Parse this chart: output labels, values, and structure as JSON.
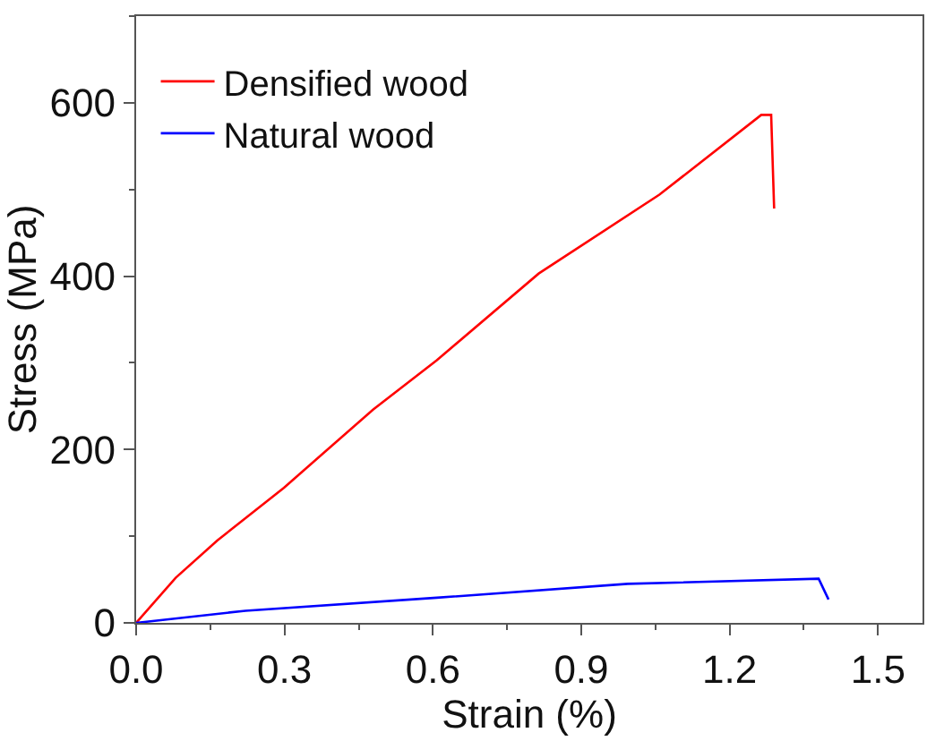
{
  "chart_data": {
    "type": "line",
    "xlabel": "Strain (%)",
    "ylabel": "Stress (MPa)",
    "xlim": [
      0,
      1.59
    ],
    "xticks": [
      {
        "value": 0,
        "label": "0.0"
      },
      0.3,
      0.6,
      0.9,
      1.2,
      1.5
    ],
    "ylim": [
      0,
      700
    ],
    "yticks": [
      0,
      200,
      400,
      600
    ],
    "legend": "top left",
    "line_style": "solid",
    "marker": "none",
    "series": [
      {
        "name": "Densified wood",
        "color": "#ff0000",
        "x": [
          0,
          0.08,
          0.164,
          0.299,
          0.479,
          0.608,
          0.814,
          1.058,
          1.264,
          1.284,
          1.29
        ],
        "values": [
          0,
          52,
          95,
          156,
          246,
          303,
          403,
          494,
          586,
          586,
          478
        ]
      },
      {
        "name": "Natural wood",
        "color": "#0000ff",
        "x": [
          0,
          0.221,
          0.608,
          0.994,
          1.38,
          1.4
        ],
        "values": [
          0,
          14,
          29,
          45,
          51,
          27
        ]
      }
    ]
  }
}
